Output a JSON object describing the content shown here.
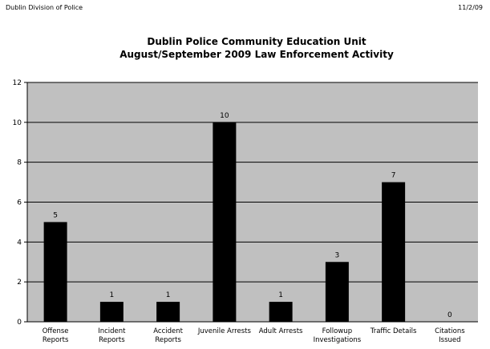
{
  "header": {
    "left": "Dublin Division of Police",
    "right": "11/2/09"
  },
  "chart_data": {
    "type": "bar",
    "title": "Dublin Police Community Education Unit",
    "subtitle": "August/September 2009 Law Enforcement Activity",
    "categories": [
      [
        "Offense",
        "Reports"
      ],
      [
        "Incident",
        "Reports"
      ],
      [
        "Accident",
        "Reports"
      ],
      [
        "Juvenile Arrests"
      ],
      [
        "Adult Arrests"
      ],
      [
        "Followup",
        "Investigations"
      ],
      [
        "Traffic Details"
      ],
      [
        "Citations",
        "Issued"
      ]
    ],
    "values": [
      5,
      1,
      1,
      10,
      1,
      3,
      7,
      0
    ],
    "data_labels": [
      "5",
      "1",
      "1",
      "10",
      "1",
      "3",
      "7",
      "0"
    ],
    "yticks": [
      "0",
      "2",
      "4",
      "6",
      "8",
      "10",
      "12"
    ],
    "ylim": [
      0,
      12
    ],
    "grid": true,
    "legend": "none",
    "colors": {
      "plot_background": "#c0c0c0",
      "bar": "#000000",
      "gridline": "#000000"
    }
  }
}
